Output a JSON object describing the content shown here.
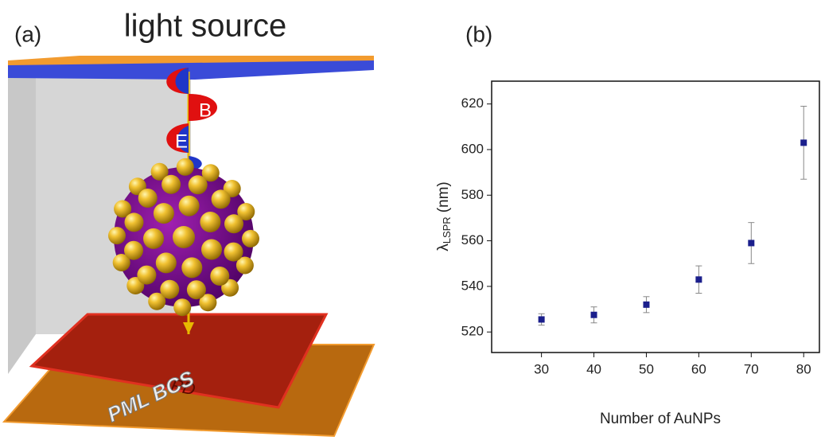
{
  "panel_a": {
    "label": "(a)",
    "title": "light source",
    "field_labels": [
      "B",
      "E"
    ],
    "detector_label": "PD",
    "boundary_label": "PML BCS"
  },
  "chart_data": {
    "type": "scatter",
    "panel_label": "(b)",
    "x_label": "Number of AuNPs",
    "y_label": {
      "symbol": "λ",
      "subscript": "LSPR",
      "unit": "(nm)"
    },
    "x": [
      30,
      40,
      50,
      60,
      70,
      80
    ],
    "series": [
      {
        "color": "#1b1f8c",
        "values": [
          525.5,
          527.5,
          532,
          543,
          559,
          603
        ],
        "errors": [
          2.5,
          3.5,
          3.5,
          6,
          9,
          16
        ]
      }
    ],
    "xlim": [
      20.5,
      83
    ],
    "ylim": [
      511,
      630
    ],
    "xticks": [
      30,
      40,
      50,
      60,
      70,
      80
    ],
    "yticks": [
      520,
      540,
      560,
      580,
      600,
      620
    ]
  }
}
